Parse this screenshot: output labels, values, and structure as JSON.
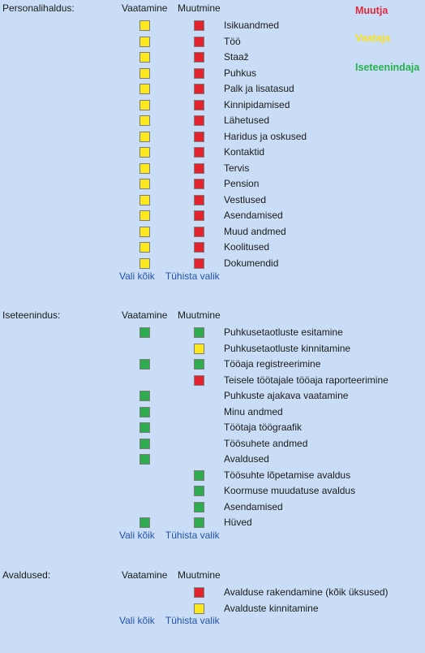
{
  "colors": {
    "red": "#e1232e",
    "yellow": "#fbe81f",
    "green": "#2eaa4f",
    "legend_red": "#e02a3c",
    "legend_yellow": "#f7e023",
    "legend_green": "#27b04e"
  },
  "legend": {
    "muutja": "Muutja",
    "vaataja": "Vaataja",
    "iseteenindaja": "Iseteenindaja"
  },
  "sections": [
    {
      "label": "Personalihaldus:",
      "col_view": "Vaatamine",
      "col_edit": "Muutmine",
      "select_all": "Vali kõik",
      "clear": "Tühista valik",
      "rows": [
        {
          "label": "Isikuandmed",
          "view": "yellow",
          "edit": "red"
        },
        {
          "label": "Töö",
          "view": "yellow",
          "edit": "red"
        },
        {
          "label": "Staaž",
          "view": "yellow",
          "edit": "red"
        },
        {
          "label": "Puhkus",
          "view": "yellow",
          "edit": "red"
        },
        {
          "label": "Palk ja lisatasud",
          "view": "yellow",
          "edit": "red"
        },
        {
          "label": "Kinnipidamised",
          "view": "yellow",
          "edit": "red"
        },
        {
          "label": "Lähetused",
          "view": "yellow",
          "edit": "red"
        },
        {
          "label": "Haridus ja oskused",
          "view": "yellow",
          "edit": "red"
        },
        {
          "label": "Kontaktid",
          "view": "yellow",
          "edit": "red"
        },
        {
          "label": "Tervis",
          "view": "yellow",
          "edit": "red"
        },
        {
          "label": "Pension",
          "view": "yellow",
          "edit": "red"
        },
        {
          "label": "Vestlused",
          "view": "yellow",
          "edit": "red"
        },
        {
          "label": "Asendamised",
          "view": "yellow",
          "edit": "red"
        },
        {
          "label": "Muud andmed",
          "view": "yellow",
          "edit": "red"
        },
        {
          "label": "Koolitused",
          "view": "yellow",
          "edit": "red"
        },
        {
          "label": "Dokumendid",
          "view": "yellow",
          "edit": "red"
        }
      ]
    },
    {
      "label": "Iseteenindus:",
      "col_view": "Vaatamine",
      "col_edit": "Muutmine",
      "select_all": "Vali kõik",
      "clear": "Tühista valik",
      "rows": [
        {
          "label": "Puhkusetaotluste esitamine",
          "view": "green",
          "edit": "green"
        },
        {
          "label": "Puhkusetaotluste kinnitamine",
          "view": null,
          "edit": "yellow"
        },
        {
          "label": "Tööaja registreerimine",
          "view": "green",
          "edit": "green"
        },
        {
          "label": "Teisele töötajale tööaja raporteerimine",
          "view": null,
          "edit": "red"
        },
        {
          "label": "Puhkuste ajakava vaatamine",
          "view": "green",
          "edit": null
        },
        {
          "label": "Minu andmed",
          "view": "green",
          "edit": null
        },
        {
          "label": "Töötaja töögraafik",
          "view": "green",
          "edit": null
        },
        {
          "label": "Töösuhete andmed",
          "view": "green",
          "edit": null
        },
        {
          "label": "Avaldused",
          "view": "green",
          "edit": null
        },
        {
          "label": "Töösuhte lõpetamise avaldus",
          "view": null,
          "edit": "green"
        },
        {
          "label": "Koormuse muudatuse avaldus",
          "view": null,
          "edit": "green"
        },
        {
          "label": "Asendamised",
          "view": null,
          "edit": "green"
        },
        {
          "label": "Hüved",
          "view": "green",
          "edit": "green"
        }
      ]
    },
    {
      "label": "Avaldused:",
      "col_view": "Vaatamine",
      "col_edit": "Muutmine",
      "select_all": "Vali kõik",
      "clear": "Tühista valik",
      "rows": [
        {
          "label": "Avalduse rakendamine (kõik üksused)",
          "view": null,
          "edit": "red"
        },
        {
          "label": "Avalduste kinnitamine",
          "view": null,
          "edit": "yellow"
        }
      ]
    }
  ]
}
